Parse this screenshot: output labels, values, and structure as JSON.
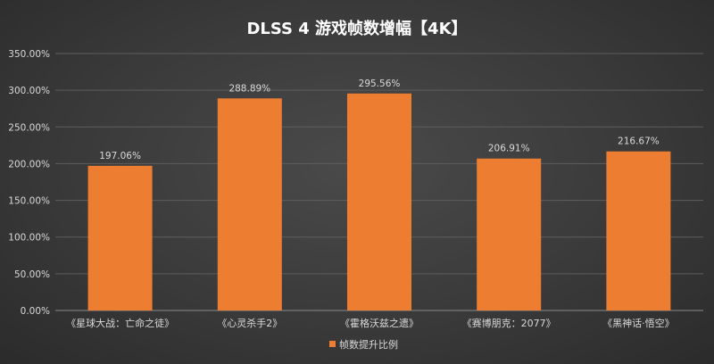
{
  "chart_data": {
    "type": "bar",
    "title": "DLSS 4 游戏帧数增幅【4K】",
    "categories": [
      "《星球大战：亡命之徒》",
      "《心灵杀手2》",
      "《霍格沃兹之遗》",
      "《赛博朋克：2077》",
      "《黑神话·悟空》"
    ],
    "series": [
      {
        "name": "帧数提升比例",
        "values": [
          197.06,
          288.89,
          295.56,
          206.91,
          216.67
        ],
        "labels": [
          "197.06%",
          "288.89%",
          "295.56%",
          "206.91%",
          "216.67%"
        ],
        "color": "#ED7D31"
      }
    ],
    "ylim": [
      0,
      350
    ],
    "yticks": [
      0,
      50,
      100,
      150,
      200,
      250,
      300,
      350
    ],
    "ytick_labels": [
      "0.00%",
      "50.00%",
      "100.00%",
      "150.00%",
      "200.00%",
      "250.00%",
      "300.00%",
      "350.00%"
    ],
    "grid": true,
    "legend_position": "bottom",
    "xlabel": "",
    "ylabel": ""
  }
}
